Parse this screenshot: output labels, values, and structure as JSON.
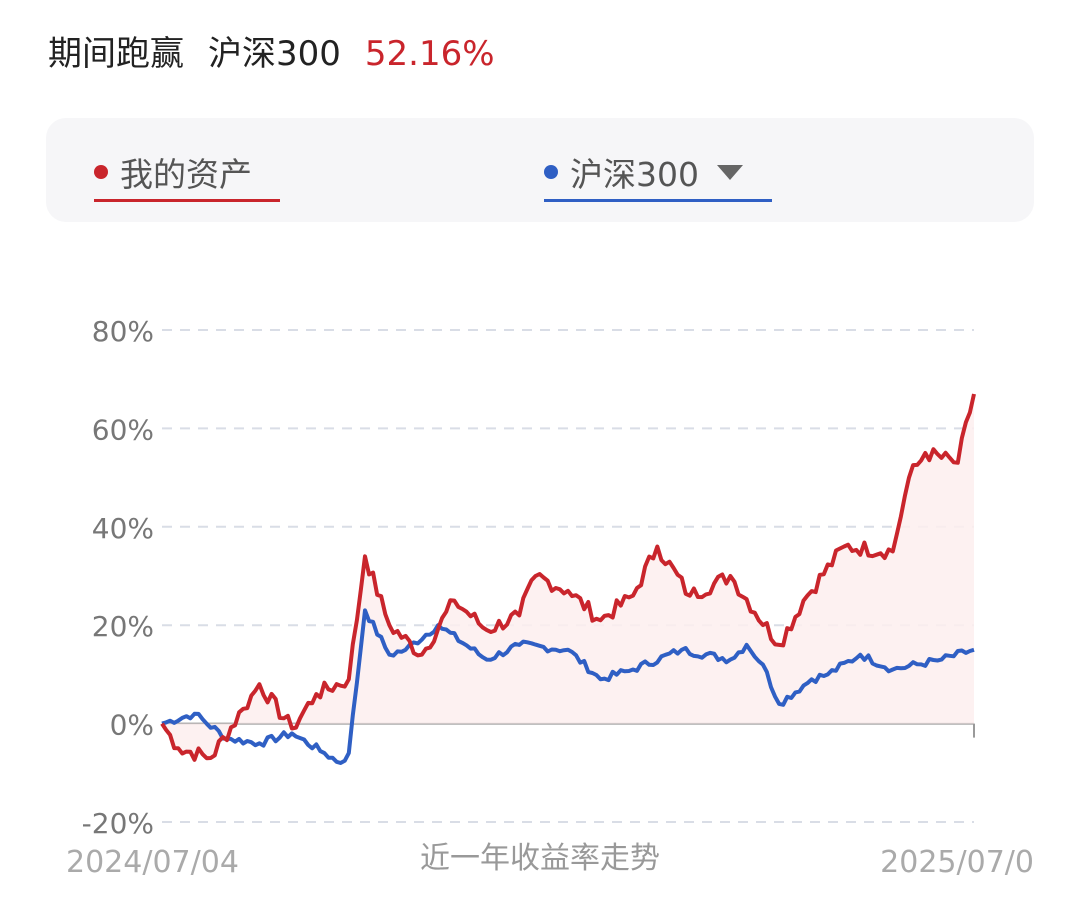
{
  "header": {
    "label": "期间跑赢",
    "benchmark": "沪深300",
    "value": "52.16%"
  },
  "legend": {
    "mine": "我的资产",
    "benchmark": "沪深300"
  },
  "colors": {
    "mine": "#c9252c",
    "benchmark": "#2f5fc4",
    "fill": "#fdeeee",
    "grid": "#d9dde6",
    "axis_text": "#777777"
  },
  "chart_data": {
    "type": "line",
    "title": "",
    "subtitle": "近一年收益率走势",
    "xlabel": "",
    "ylabel": "",
    "ylim": [
      -20,
      80
    ],
    "yticks": [
      "80%",
      "60%",
      "40%",
      "20%",
      "0%",
      "-20%"
    ],
    "ytick_values": [
      80,
      60,
      40,
      20,
      0,
      -20
    ],
    "grid": true,
    "x_start_label": "2024/07/04",
    "x_end_label": "2025/07/0",
    "x": [
      0,
      4,
      8,
      12,
      16,
      20,
      24,
      28,
      32,
      36,
      40,
      44,
      48,
      52,
      56,
      60,
      64,
      68,
      72,
      76,
      80,
      84,
      88,
      92,
      96,
      100
    ],
    "series": [
      {
        "name": "我的资产",
        "values": [
          0,
          -5,
          -7,
          3,
          8,
          -1,
          6,
          9,
          34,
          20,
          14,
          25,
          19,
          22,
          30,
          27,
          21,
          26,
          36,
          26,
          30,
          16,
          25,
          36,
          35,
          50,
          55,
          53,
          67
        ],
        "x": [
          0,
          2,
          6,
          10,
          12,
          16,
          19,
          23,
          25,
          28,
          32,
          36,
          40,
          44,
          46,
          50,
          54,
          58,
          61,
          65,
          70,
          76,
          79,
          84,
          90,
          92,
          94,
          98,
          100
        ]
      },
      {
        "name": "沪深300",
        "values": [
          0,
          2,
          -3,
          -4,
          -2,
          -6,
          -8,
          -6,
          23,
          14,
          15,
          20,
          13,
          16,
          15,
          9,
          11,
          15,
          13,
          16,
          12,
          4,
          9,
          10,
          14,
          11,
          13,
          15
        ],
        "x": [
          0,
          4,
          8,
          12,
          16,
          20,
          22,
          23,
          25,
          28,
          30,
          34,
          40,
          44,
          50,
          54,
          58,
          64,
          70,
          72,
          74,
          76,
          80,
          82,
          86,
          90,
          96,
          100
        ]
      }
    ]
  }
}
